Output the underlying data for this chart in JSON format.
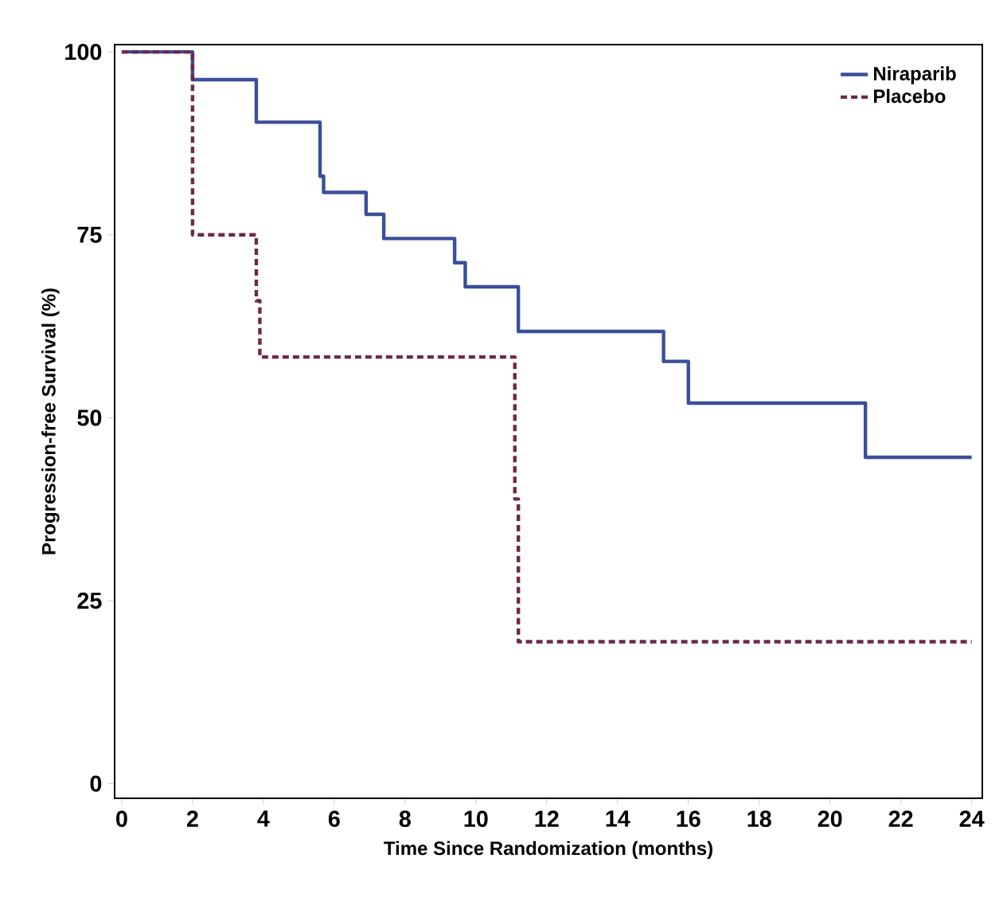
{
  "chart_data": {
    "type": "step",
    "xlabel": "Time Since Randomization (months)",
    "ylabel": "Progression-free Survival (%)",
    "xlim": [
      -0.2,
      24.3
    ],
    "ylim": [
      -2,
      101
    ],
    "xticks": [
      0,
      2,
      4,
      6,
      8,
      10,
      12,
      14,
      16,
      18,
      20,
      22,
      24
    ],
    "yticks": [
      0,
      25,
      50,
      75,
      100
    ],
    "legend": "top right",
    "marker": "none",
    "series": [
      {
        "name": "Niraparib",
        "color": "#3a4f9a",
        "line_style": "solid",
        "x": [
          0,
          2.0,
          3.8,
          5.6,
          5.7,
          6.9,
          7.4,
          9.4,
          9.7,
          11.2,
          15.3,
          16.0,
          21.0,
          24
        ],
        "values": [
          100,
          96.2,
          90.4,
          83,
          80.8,
          77.8,
          74.5,
          71.2,
          67.9,
          61.8,
          57.7,
          52,
          44.6,
          44.6
        ]
      },
      {
        "name": "Placebo",
        "color": "#6b2a4a",
        "line_style": "dashed",
        "x": [
          0,
          2.0,
          3.8,
          3.9,
          11.1,
          11.2,
          24
        ],
        "values": [
          100,
          75,
          66,
          58.3,
          38.9,
          19.4,
          19.4
        ]
      }
    ]
  }
}
